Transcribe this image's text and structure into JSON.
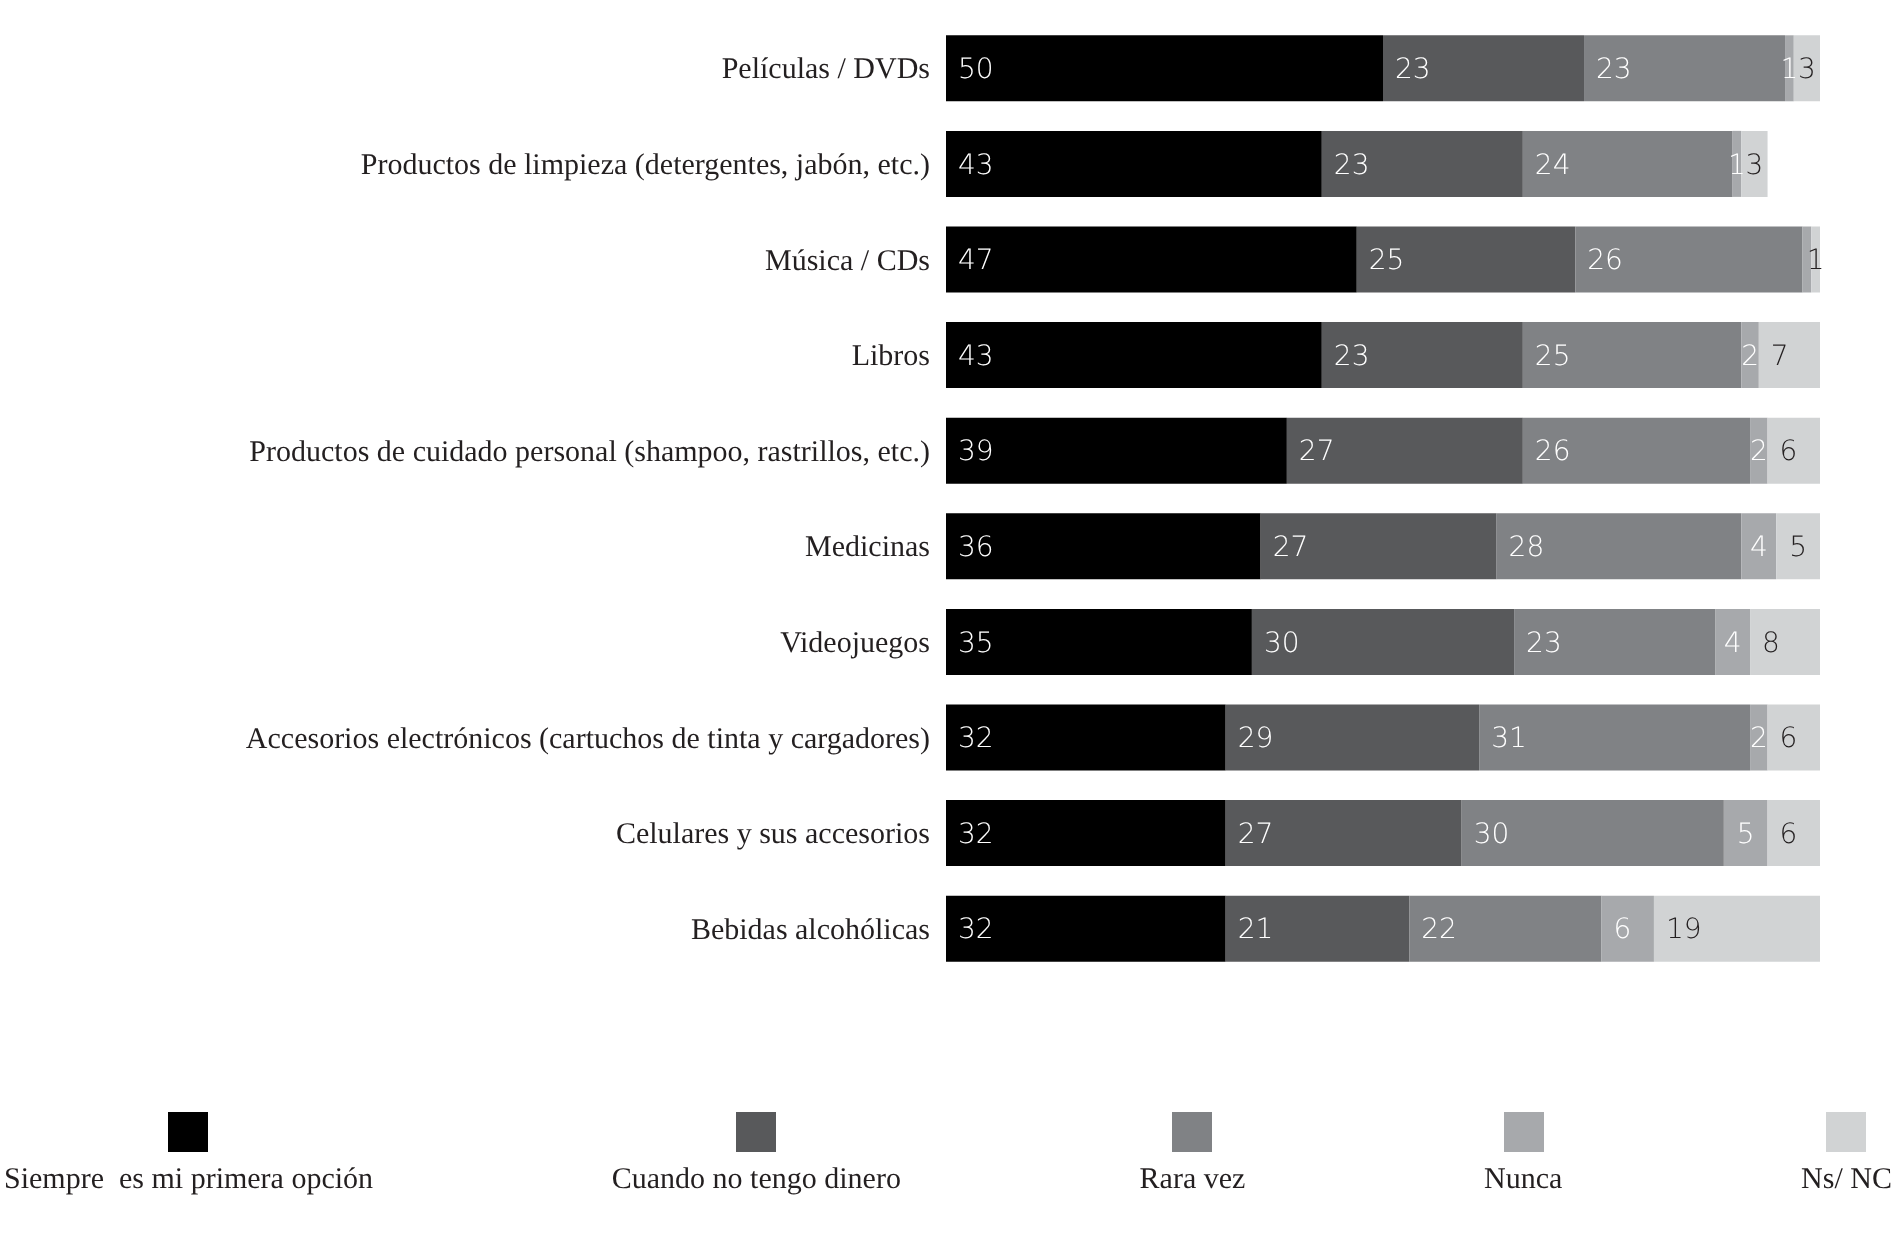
{
  "chart_data": {
    "type": "bar",
    "orientation": "horizontal",
    "stacked": true,
    "legend": "bottom",
    "xlim": [
      0,
      100
    ],
    "tick_labels": "y",
    "categories": [
      "Películas / DVDs",
      "Productos de limpieza (detergentes, jabón, etc.)",
      "Música / CDs",
      "Libros",
      "Productos de cuidado personal (shampoo, rastrillos, etc.)",
      "Medicinas",
      "Videojuegos",
      "Accesorios electrónicos (cartuchos de tinta y cargadores)",
      "Celulares y sus accesorios",
      "Bebidas alcohólicas"
    ],
    "series": [
      {
        "name": "Siempre  es mi primera opción",
        "color": "#000000",
        "values": [
          50,
          43,
          47,
          43,
          39,
          36,
          35,
          32,
          32,
          32
        ],
        "value_labels": [
          "50",
          "43",
          "47",
          "43",
          "39",
          "36",
          "35",
          "32",
          "32",
          "32"
        ]
      },
      {
        "name": "Cuando no tengo dinero",
        "color": "#58595b",
        "values": [
          23,
          23,
          25,
          23,
          27,
          27,
          30,
          29,
          27,
          21
        ],
        "value_labels": [
          "23",
          "23",
          "25",
          "23",
          "27",
          "27",
          "30",
          "29",
          "27",
          "21"
        ]
      },
      {
        "name": "Rara vez",
        "color": "#808285",
        "values": [
          23,
          24,
          26,
          25,
          26,
          28,
          23,
          31,
          30,
          22
        ],
        "value_labels": [
          "23",
          "24",
          "26",
          "25",
          "26",
          "28",
          "23",
          "31",
          "30",
          "22"
        ]
      },
      {
        "name": "Nunca",
        "color": "#a7a9ac",
        "values": [
          1,
          1,
          1,
          2,
          2,
          4,
          4,
          2,
          5,
          6
        ],
        "value_labels": [
          "1",
          "1",
          null,
          "2",
          "2",
          "4",
          "4",
          "2",
          "5",
          "6"
        ]
      },
      {
        "name": "Ns/ NC",
        "color": "#d1d3d4",
        "values": [
          3,
          3,
          1,
          7,
          6,
          5,
          8,
          6,
          6,
          19
        ],
        "value_labels": [
          "3",
          "3",
          "1",
          "7",
          "6",
          "5",
          "8",
          "6",
          "6",
          "19"
        ]
      }
    ]
  }
}
